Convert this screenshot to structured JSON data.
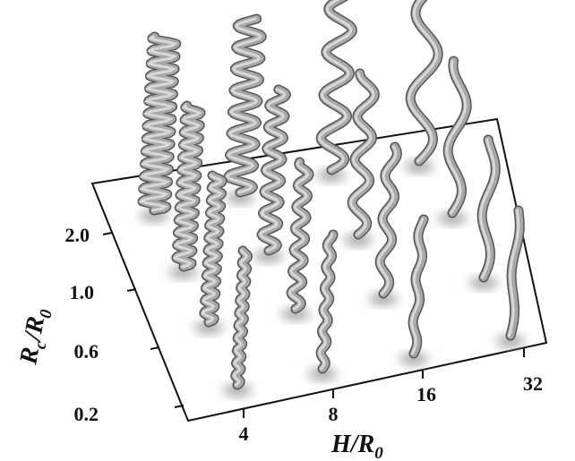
{
  "axes": {
    "x": {
      "label": {
        "main": "H/R",
        "sub": "0"
      },
      "ticks": [
        "4",
        "8",
        "16",
        "32"
      ]
    },
    "y": {
      "label": {
        "main": "R",
        "sub": "c",
        "mid": "/R",
        "sub2": "0"
      },
      "ticks": [
        "0.2",
        "0.6",
        "1.0",
        "2.0"
      ]
    }
  }
}
